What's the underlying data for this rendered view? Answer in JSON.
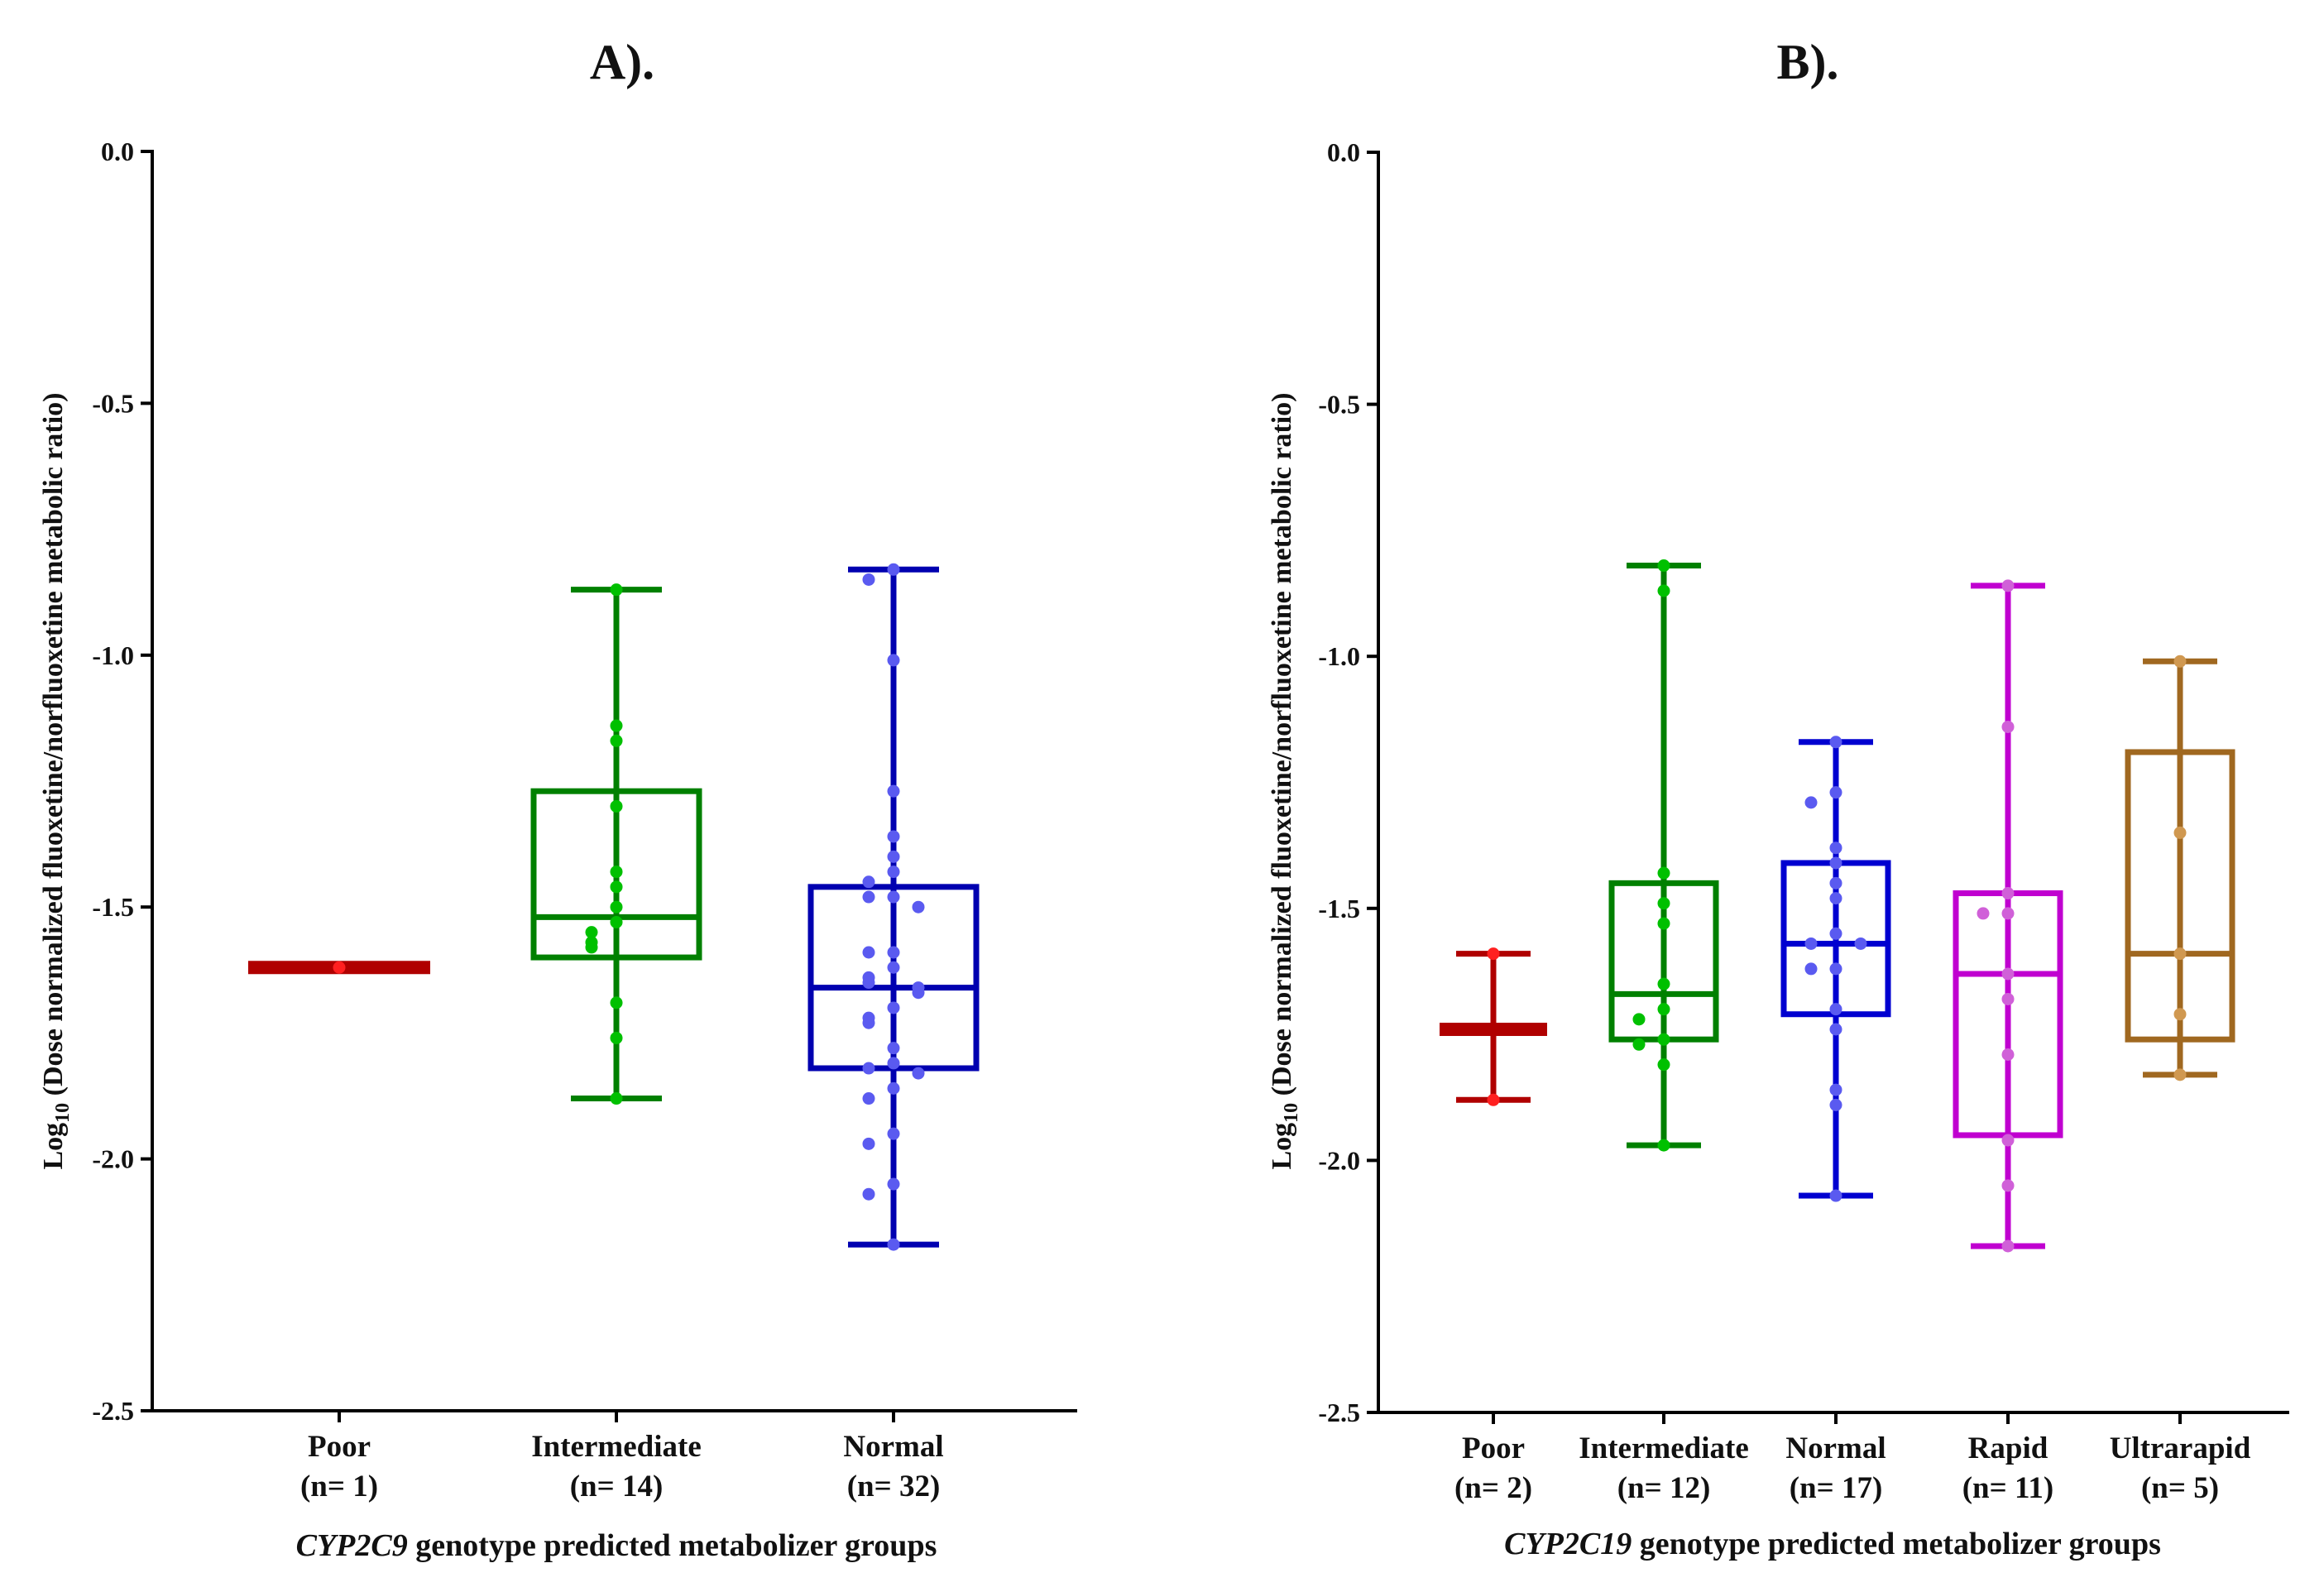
{
  "chart_data": [
    {
      "type": "box",
      "title": "A).",
      "xlabel_italic": "CYP2C9",
      "xlabel_rest": " genotype predicted metabolizer groups",
      "ylabel_prefix": "Log",
      "ylabel_sub": "10",
      "ylabel_rest": " (Dose normalized fluoxetine/norfluoxetine metabolic ratio)",
      "ylim": [
        -2.5,
        0.0
      ],
      "yticks": [
        "0.0",
        "-0.5",
        "-1.0",
        "-1.5",
        "-2.0",
        "-2.5"
      ],
      "grid": false,
      "groups": [
        {
          "name": "Poor",
          "n": "(n= 1)",
          "box_color": "#b00000",
          "point_color": "#ff2020",
          "min": -1.62,
          "q1": -1.62,
          "median": -1.62,
          "q3": -1.62,
          "max": -1.62,
          "points": [
            -1.62
          ]
        },
        {
          "name": "Intermediate",
          "n": "(n= 14)",
          "box_color": "#008000",
          "point_color": "#00c000",
          "min": -1.88,
          "q1": -1.6,
          "median": -1.52,
          "q3": -1.27,
          "max": -0.87,
          "points": [
            -0.87,
            -1.14,
            -1.17,
            -1.3,
            -1.43,
            -1.46,
            -1.5,
            -1.53,
            -1.55,
            -1.57,
            -1.58,
            -1.69,
            -1.76,
            -1.88
          ]
        },
        {
          "name": "Normal",
          "n": "(n= 32)",
          "box_color": "#0000b0",
          "point_color": "#5a5af0",
          "min": -2.17,
          "q1": -1.82,
          "median": -1.66,
          "q3": -1.46,
          "max": -0.83,
          "points": [
            -0.83,
            -0.85,
            -1.01,
            -1.27,
            -1.36,
            -1.4,
            -1.43,
            -1.45,
            -1.48,
            -1.48,
            -1.5,
            -1.59,
            -1.59,
            -1.62,
            -1.64,
            -1.65,
            -1.66,
            -1.67,
            -1.7,
            -1.72,
            -1.73,
            -1.78,
            -1.81,
            -1.82,
            -1.83,
            -1.86,
            -1.88,
            -1.95,
            -1.97,
            -2.05,
            -2.07,
            -2.17
          ]
        }
      ]
    },
    {
      "type": "box",
      "title": "B).",
      "xlabel_italic": "CYP2C19",
      "xlabel_rest": " genotype predicted metabolizer groups",
      "ylabel_prefix": "Log",
      "ylabel_sub": "10",
      "ylabel_rest": " (Dose normalized fluoxetine/norfluoxetine metabolic ratio)",
      "ylim": [
        -2.5,
        0.0
      ],
      "yticks": [
        "0.0",
        "-0.5",
        "-1.0",
        "-1.5",
        "-2.0",
        "-2.5"
      ],
      "grid": false,
      "groups": [
        {
          "name": "Poor",
          "n": "(n= 2)",
          "box_color": "#b00000",
          "point_color": "#ff2020",
          "min": -1.88,
          "q1": -1.74,
          "median": -1.74,
          "q3": -1.74,
          "max": -1.59,
          "points": [
            -1.59,
            -1.88
          ]
        },
        {
          "name": "Intermediate",
          "n": "(n= 12)",
          "box_color": "#008000",
          "point_color": "#00c000",
          "min": -1.97,
          "q1": -1.76,
          "median": -1.67,
          "q3": -1.45,
          "max": -0.82,
          "points": [
            -0.82,
            -0.87,
            -1.43,
            -1.49,
            -1.53,
            -1.65,
            -1.7,
            -1.72,
            -1.76,
            -1.77,
            -1.81,
            -1.97
          ]
        },
        {
          "name": "Normal",
          "n": "(n= 17)",
          "box_color": "#0000d0",
          "point_color": "#5a5af0",
          "min": -2.07,
          "q1": -1.71,
          "median": -1.57,
          "q3": -1.41,
          "max": -1.17,
          "points": [
            -1.17,
            -1.27,
            -1.29,
            -1.38,
            -1.41,
            -1.45,
            -1.48,
            -1.55,
            -1.57,
            -1.57,
            -1.62,
            -1.62,
            -1.7,
            -1.74,
            -1.86,
            -1.89,
            -2.07
          ]
        },
        {
          "name": "Rapid",
          "n": "(n= 11)",
          "box_color": "#c000d0",
          "point_color": "#d060d8",
          "min": -2.17,
          "q1": -1.95,
          "median": -1.63,
          "q3": -1.47,
          "max": -0.86,
          "points": [
            -0.86,
            -1.14,
            -1.47,
            -1.51,
            -1.51,
            -1.63,
            -1.68,
            -1.79,
            -1.96,
            -2.05,
            -2.17
          ]
        },
        {
          "name": "Ultrarapid",
          "n": "(n= 5)",
          "box_color": "#a06820",
          "point_color": "#d09850",
          "min": -1.83,
          "q1": -1.76,
          "median": -1.59,
          "q3": -1.19,
          "max": -1.01,
          "points": [
            -1.01,
            -1.35,
            -1.59,
            -1.71,
            -1.83
          ]
        }
      ]
    }
  ]
}
